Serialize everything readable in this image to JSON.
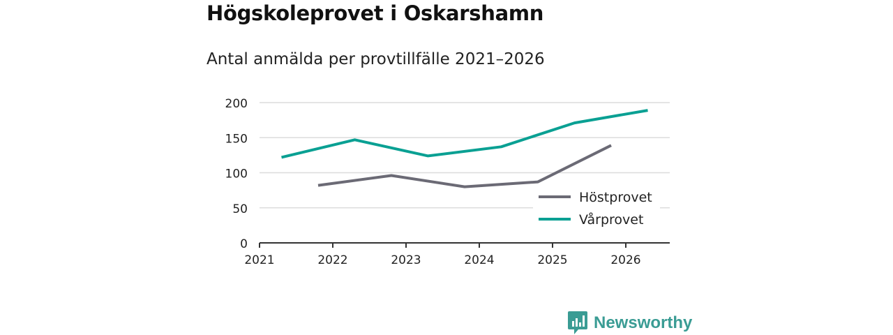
{
  "title": "Högskoleprovet i Oskarshamn",
  "subtitle": "Antal anmälda per provtillfälle 2021–2026",
  "brand": {
    "name": "Newsworthy",
    "color": "#3a9c94"
  },
  "chart_data": {
    "type": "line",
    "title": "Högskoleprovet i Oskarshamn",
    "subtitle": "Antal anmälda per provtillfälle 2021–2026",
    "xlabel": "",
    "ylabel": "",
    "xlim": [
      2021,
      2026.6
    ],
    "ylim": [
      0,
      200
    ],
    "grid": true,
    "legend_position": "right",
    "x_ticks": [
      "2021",
      "2022",
      "2023",
      "2024",
      "2025",
      "2026"
    ],
    "y_ticks": [
      "0",
      "50",
      "100",
      "150",
      "200"
    ],
    "series": [
      {
        "name": "Höstprovet",
        "color": "#6b6a75",
        "x": [
          2021.8,
          2022.8,
          2023.8,
          2024.8,
          2025.8
        ],
        "values": [
          82,
          96,
          80,
          87,
          139
        ]
      },
      {
        "name": "Vårprovet",
        "color": "#0aa093",
        "x": [
          2021.3,
          2022.3,
          2023.3,
          2024.3,
          2025.3,
          2026.3
        ],
        "values": [
          122,
          147,
          124,
          137,
          171,
          189
        ]
      }
    ]
  }
}
